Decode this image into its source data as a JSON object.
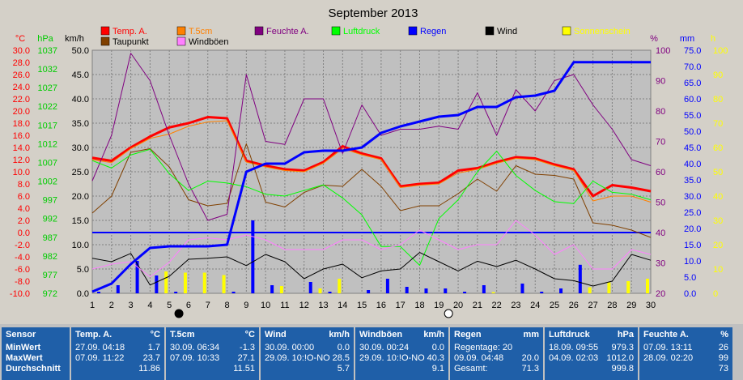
{
  "chart_data": {
    "type": "line",
    "title": "September 2013",
    "x": [
      1,
      2,
      3,
      4,
      5,
      6,
      7,
      8,
      9,
      10,
      11,
      12,
      13,
      14,
      15,
      16,
      17,
      18,
      19,
      20,
      21,
      22,
      23,
      24,
      25,
      26,
      27,
      28,
      29,
      30
    ],
    "xlim": [
      1,
      30
    ],
    "axes": {
      "celsius": {
        "label": "°C",
        "ylim": [
          -10,
          30
        ],
        "ticks": [
          "30.0",
          "28.0",
          "26.0",
          "24.0",
          "22.0",
          "20.0",
          "18.0",
          "16.0",
          "14.0",
          "12.0",
          "10.0",
          "8.0",
          "6.0",
          "4.0",
          "2.0",
          "0.0",
          "-2.0",
          "-4.0",
          "-6.0",
          "-8.0",
          "-10.0"
        ],
        "color": "#ff0000"
      },
      "hpa": {
        "label": "hPa",
        "ylim": [
          972,
          1037
        ],
        "ticks": [
          "1037",
          "1032",
          "1027",
          "1022",
          "1017",
          "1012",
          "1007",
          "1002",
          "997",
          "992",
          "987",
          "982",
          "977",
          "972"
        ],
        "color": "#00cc00"
      },
      "kmh": {
        "label": "km/h",
        "ylim": [
          0,
          50
        ],
        "ticks": [
          "50.0",
          "45.0",
          "40.0",
          "35.0",
          "30.0",
          "25.0",
          "20.0",
          "15.0",
          "10.0",
          "5.0",
          "0.0"
        ],
        "color": "#000000"
      },
      "percent": {
        "label": "%",
        "ylim": [
          20,
          100
        ],
        "ticks": [
          "100",
          "90",
          "80",
          "70",
          "60",
          "50",
          "40",
          "30",
          "20"
        ],
        "color": "#800080"
      },
      "mm": {
        "label": "mm",
        "ylim": [
          0,
          75
        ],
        "ticks": [
          "75.0",
          "70.0",
          "65.0",
          "60.0",
          "55.0",
          "50.0",
          "45.0",
          "40.0",
          "35.0",
          "30.0",
          "25.0",
          "20.0",
          "15.0",
          "10.0",
          "5.0",
          "0.0"
        ],
        "color": "#0000ff"
      },
      "h": {
        "label": "h",
        "ylim": [
          0,
          100
        ],
        "ticks": [
          "100",
          "90",
          "80",
          "70",
          "60",
          "50",
          "40",
          "30",
          "20",
          "10",
          "0"
        ],
        "color": "#ffff00"
      }
    },
    "legend": [
      {
        "name": "Temp. A.",
        "color": "#ff0000"
      },
      {
        "name": "T.5cm",
        "color": "#ff8000"
      },
      {
        "name": "Feuchte A.",
        "color": "#800080"
      },
      {
        "name": "Luftdruck",
        "color": "#00ff00"
      },
      {
        "name": "Regen",
        "color": "#0000ff"
      },
      {
        "name": "Wind",
        "color": "#000000"
      },
      {
        "name": "Sonnenschein",
        "color": "#ffff00"
      },
      {
        "name": "Taupunkt",
        "color": "#804000"
      },
      {
        "name": "Windböen",
        "color": "#ff80ff"
      }
    ],
    "series": [
      {
        "name": "Temp. A.",
        "axis": "celsius",
        "color": "#ff0000",
        "width": 3,
        "values": [
          12.3,
          11.8,
          14.0,
          15.8,
          17.3,
          18.0,
          19.0,
          18.8,
          11.8,
          11.0,
          10.4,
          10.2,
          11.6,
          14.2,
          13.0,
          12.2,
          7.6,
          8.0,
          8.2,
          10.2,
          10.6,
          11.6,
          12.4,
          12.2,
          11.2,
          10.4,
          6.0,
          7.8,
          7.4,
          6.8
        ],
        "hourly": true
      },
      {
        "name": "T.5cm",
        "axis": "celsius",
        "color": "#ff8000",
        "width": 1,
        "values": [
          12.0,
          11.5,
          13.8,
          15.5,
          16.2,
          17.5,
          18.2,
          18.4,
          11.6,
          10.8,
          10.2,
          10.0,
          11.4,
          13.8,
          12.8,
          12.0,
          7.4,
          7.8,
          8.0,
          9.8,
          10.4,
          11.4,
          12.2,
          12.0,
          11.0,
          10.2,
          5.2,
          6.0,
          6.0,
          5.0
        ]
      },
      {
        "name": "Taupunkt",
        "axis": "celsius",
        "color": "#804000",
        "width": 1,
        "values": [
          3.2,
          6.0,
          13.2,
          13.8,
          10.8,
          5.4,
          4.4,
          4.8,
          14.6,
          5.0,
          4.2,
          6.6,
          7.8,
          7.6,
          10.4,
          7.6,
          3.6,
          4.4,
          4.4,
          6.4,
          8.8,
          6.8,
          11.0,
          9.6,
          9.4,
          8.8,
          1.6,
          1.2,
          0.4,
          -0.8
        ]
      },
      {
        "name": "Feuchte A.",
        "axis": "percent",
        "color": "#800080",
        "width": 1,
        "values": [
          57,
          72,
          99,
          90,
          72,
          56,
          44,
          46,
          92,
          70,
          69,
          84,
          84,
          66,
          82,
          72,
          74,
          74,
          75,
          74,
          86,
          72,
          87,
          80,
          90,
          92,
          82,
          74,
          64,
          62
        ]
      },
      {
        "name": "Luftdruck",
        "axis": "hpa",
        "color": "#00ff00",
        "width": 1,
        "values": [
          1007.5,
          1005.5,
          1009.0,
          1010.5,
          1004.0,
          999.5,
          1002.0,
          1001.5,
          1000.5,
          998.5,
          998.0,
          999.5,
          1001.0,
          997.5,
          993.0,
          984.5,
          984.5,
          979.5,
          992.0,
          997.0,
          1004.5,
          1010.0,
          1003.5,
          999.5,
          996.5,
          996.0,
          1002.0,
          999.0,
          998.5,
          997.0
        ]
      },
      {
        "name": "Wind",
        "axis": "kmh",
        "color": "#000000",
        "width": 1,
        "values": [
          7.2,
          6.5,
          8.2,
          1.7,
          3.5,
          7.0,
          7.2,
          7.5,
          5.7,
          8.0,
          6.5,
          3.0,
          5.0,
          6.0,
          3.2,
          4.6,
          5.0,
          8.4,
          6.5,
          4.6,
          6.6,
          5.5,
          6.8,
          5.0,
          3.0,
          2.6,
          1.5,
          2.5,
          8.0,
          6.8
        ]
      },
      {
        "name": "Windböen",
        "axis": "kmh",
        "color": "#ff80ff",
        "width": 1,
        "values": [
          5.0,
          6.0,
          6.5,
          3.4,
          6.4,
          11.0,
          11.4,
          11.0,
          12.0,
          11.0,
          9.0,
          9.0,
          9.0,
          11.0,
          11.0,
          9.0,
          10.0,
          13.0,
          11.0,
          9.0,
          10.0,
          10.0,
          15.0,
          12.0,
          8.0,
          10.0,
          5.0,
          5.0,
          9.0,
          8.0
        ]
      },
      {
        "name": "Regen",
        "axis": "mm",
        "color": "#0000ff",
        "width": 3,
        "cumulative": true,
        "values": [
          0.5,
          3.0,
          9.0,
          14.0,
          14.5,
          14.5,
          14.5,
          15.0,
          37.5,
          40.0,
          40.0,
          43.5,
          44.0,
          44.0,
          45.0,
          49.5,
          51.5,
          53.0,
          54.5,
          55.0,
          57.5,
          57.5,
          60.5,
          61.0,
          62.5,
          71.3,
          71.3,
          71.3,
          71.3,
          71.3
        ]
      }
    ],
    "bars": [
      {
        "name": "Regen",
        "axis": "mm",
        "color": "#0000ff",
        "values": [
          0.5,
          2.5,
          10.0,
          5.5,
          0.5,
          0,
          0,
          0.5,
          22.5,
          2.5,
          0,
          3.5,
          0.5,
          0,
          1.0,
          4.5,
          2.0,
          1.5,
          1.5,
          0.5,
          2.5,
          0,
          3.0,
          0.5,
          1.5,
          8.8,
          0,
          0,
          0,
          0
        ]
      },
      {
        "name": "Sonnenschein",
        "axis": "h",
        "color": "#ffff00",
        "values": [
          0,
          0,
          0,
          0,
          9.0,
          8.5,
          8.5,
          7.5,
          0,
          0,
          3.0,
          0,
          2.0,
          6.0,
          0,
          0,
          0,
          0,
          0,
          0,
          0,
          0.5,
          0,
          0,
          0,
          0,
          2.5,
          4.5,
          5.0,
          6.0
        ]
      }
    ],
    "hline": {
      "axis": "celsius",
      "value": 0.0,
      "color": "#0000ff"
    },
    "moon_markers": [
      {
        "day": 5.5,
        "phase": "new-moon"
      },
      {
        "day": 19.5,
        "phase": "full-moon"
      }
    ],
    "grid": true
  },
  "summary": {
    "sensor": {
      "title": "Sensor",
      "rows": [
        "MinWert",
        "MaxWert",
        "Durchschnitt"
      ]
    },
    "cells": [
      {
        "name": "Temp. A.",
        "unit": "°C",
        "min": {
          "time": "27.09.  04:18",
          "value": "1.7"
        },
        "max": {
          "time": "07.09.  11:22",
          "value": "23.7"
        },
        "avg": "11.86"
      },
      {
        "name": "T.5cm",
        "unit": "°C",
        "min": {
          "time": "30.09.  06:34",
          "value": "-1.3"
        },
        "max": {
          "time": "07.09.  10:33",
          "value": "27.1"
        },
        "avg": "11.51"
      },
      {
        "name": "Wind",
        "unit": "km/h",
        "min": {
          "time": "30.09.  00:00",
          "value": "0.0"
        },
        "max": {
          "time": "29.09.  10:!O-NO",
          "value": "28.5"
        },
        "avg": "5.7"
      },
      {
        "name": "Windböen",
        "unit": "km/h",
        "min": {
          "time": "30.09.  00:24",
          "value": "0.0"
        },
        "max": {
          "time": "29.09.  10:!O-NO",
          "value": "40.3"
        },
        "avg": "9.1"
      },
      {
        "name": "Regen",
        "unit": "mm",
        "min": {
          "time": "Regentage: 20",
          "value": ""
        },
        "max": {
          "time": "09.09.  04:48",
          "value": "20.0"
        },
        "avg_label": "Gesamt:",
        "avg": "71.3"
      },
      {
        "name": "Luftdruck",
        "unit": "hPa",
        "min": {
          "time": "18.09.  09:55",
          "value": "979.3"
        },
        "max": {
          "time": "04.09.  02:03",
          "value": "1012.0"
        },
        "avg": "999.8"
      },
      {
        "name": "Feuchte A.",
        "unit": "%",
        "min": {
          "time": "07.09.  13:11",
          "value": "26"
        },
        "max": {
          "time": "28.09.  02:20",
          "value": "99"
        },
        "avg": "73"
      }
    ]
  }
}
